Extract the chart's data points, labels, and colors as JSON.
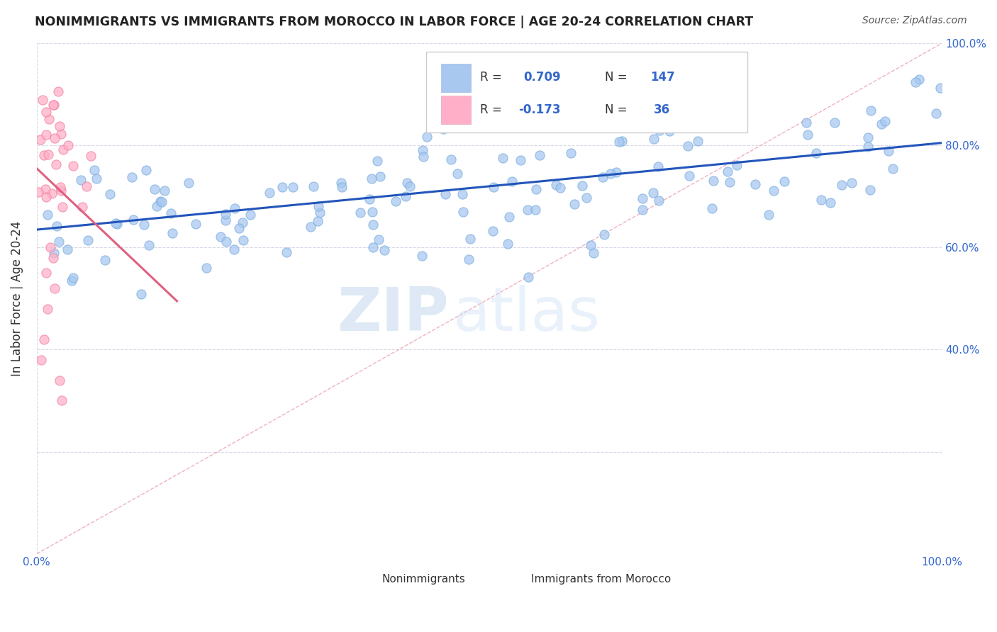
{
  "title": "NONIMMIGRANTS VS IMMIGRANTS FROM MOROCCO IN LABOR FORCE | AGE 20-24 CORRELATION CHART",
  "source": "Source: ZipAtlas.com",
  "ylabel": "In Labor Force | Age 20-24",
  "xlim": [
    0.0,
    1.0
  ],
  "ylim": [
    0.0,
    1.0
  ],
  "nonimmigrant_color": "#a8c8f0",
  "nonimmigrant_edge_color": "#7aaee0",
  "immigrant_color": "#ffb0c8",
  "immigrant_edge_color": "#f080a0",
  "nonimmigrant_line_color": "#2255bb",
  "immigrant_line_color": "#e06080",
  "diagonal_color": "#f0b0c0",
  "diagonal_style": "--",
  "right_y_ticks": [
    0.4,
    0.6,
    0.8,
    1.0
  ],
  "right_y_labels": [
    "40.0%",
    "60.0%",
    "80.0%",
    "100.0%"
  ],
  "x_tick_labels": [
    "0.0%",
    "100.0%"
  ],
  "x_tick_positions": [
    0.0,
    1.0
  ],
  "R_nonimmigrant": 0.709,
  "N_nonimmigrant": 147,
  "R_immigrant": -0.173,
  "N_immigrant": 36,
  "legend_label_1": "Nonimmigrants",
  "legend_label_2": "Immigrants from Morocco",
  "watermark_zip": "ZIP",
  "watermark_atlas": "atlas",
  "nonimmigrant_line_x0": 0.0,
  "nonimmigrant_line_y0": 0.635,
  "nonimmigrant_line_x1": 1.0,
  "nonimmigrant_line_y1": 0.805,
  "immigrant_line_x0": 0.0,
  "immigrant_line_y0": 0.755,
  "immigrant_line_x1": 0.155,
  "immigrant_line_y1": 0.495
}
